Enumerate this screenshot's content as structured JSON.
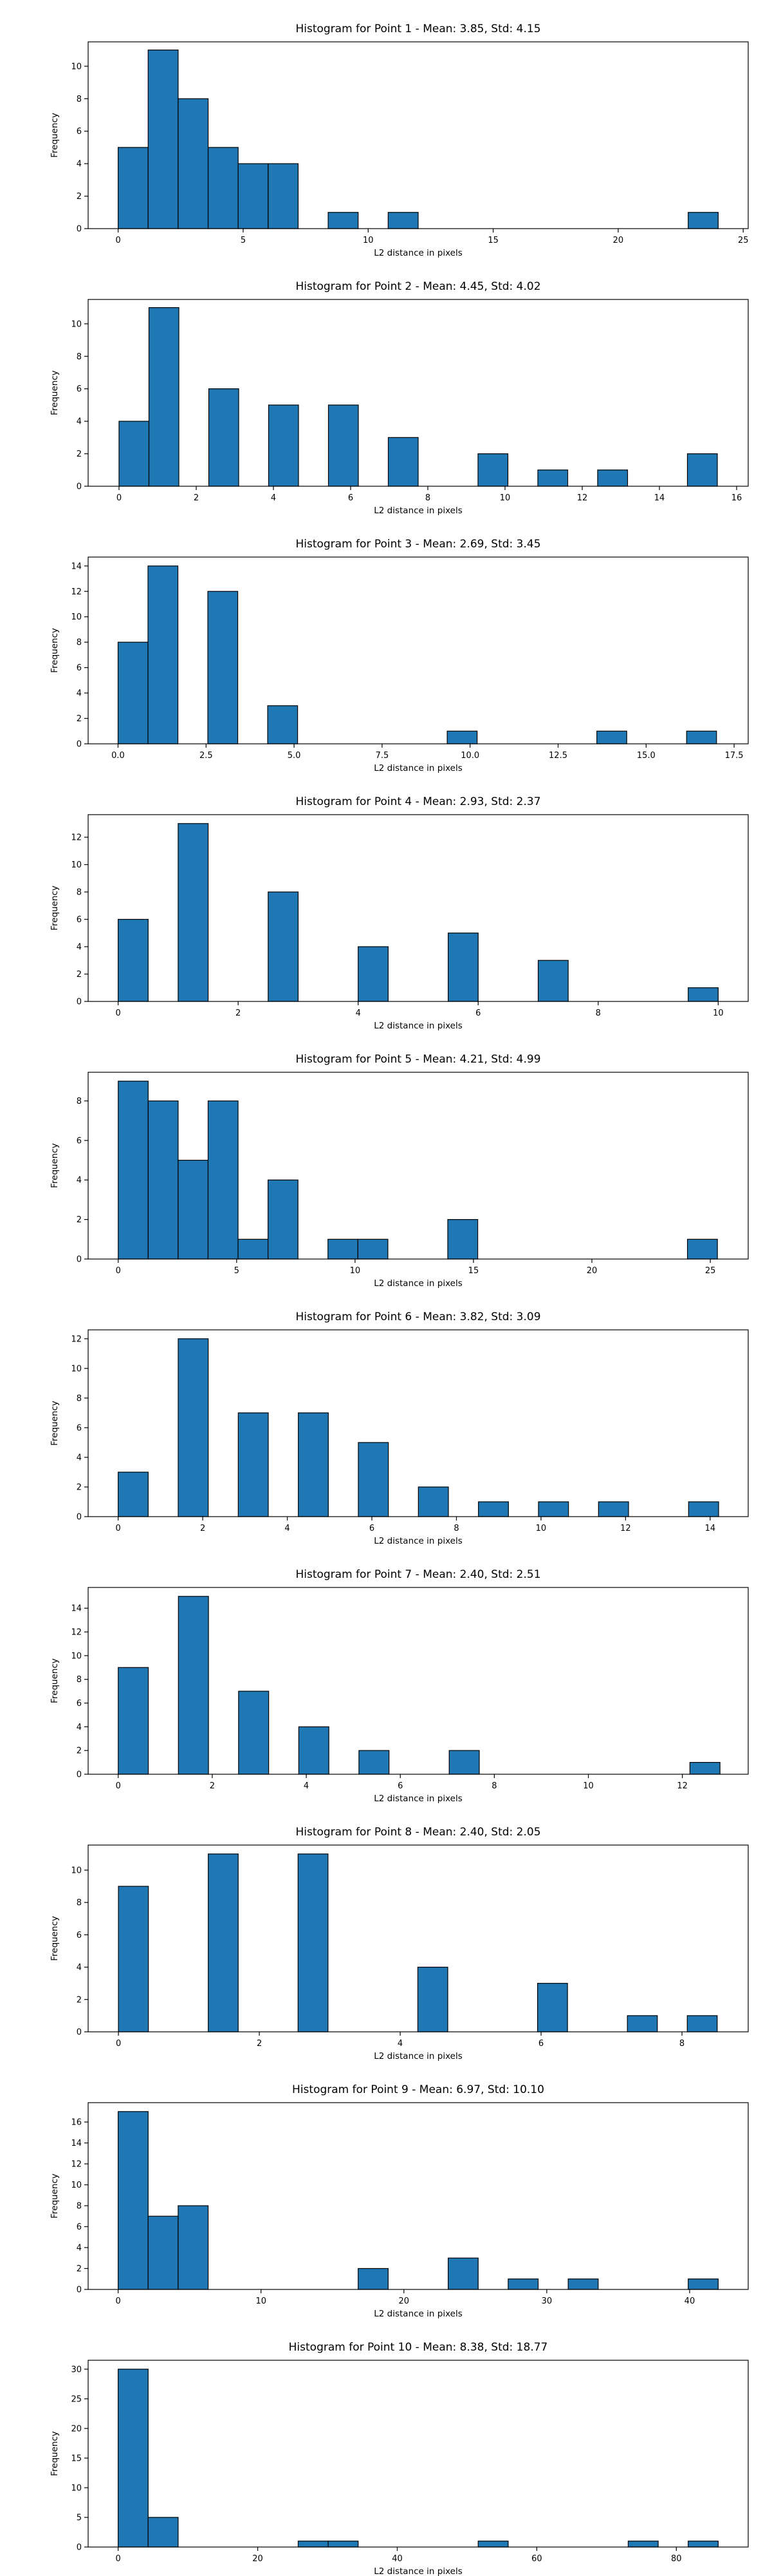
{
  "colors": {
    "bar_fill": "#1f77b4",
    "bar_edge": "#000000",
    "axes": "#000000"
  },
  "chart_data": [
    {
      "type": "bar",
      "title": "Histogram for Point 1 - Mean: 3.85, Std: 4.15",
      "xlabel": "L2 distance in pixels",
      "ylabel": "Frequency",
      "xlim": [
        -1.2,
        25.2
      ],
      "ylim": [
        0,
        11.5
      ],
      "xticks": [
        0,
        5,
        10,
        15,
        20,
        25
      ],
      "xtick_labels": [
        "0",
        "5",
        "10",
        "15",
        "20",
        "25"
      ],
      "yticks": [
        0,
        2,
        4,
        6,
        8,
        10
      ],
      "ytick_labels": [
        "0",
        "2",
        "4",
        "6",
        "8",
        "10"
      ],
      "bin_edges": [
        0,
        1.2,
        2.4,
        3.6,
        4.8,
        6.0,
        7.2,
        8.4,
        9.6,
        10.8,
        12.0,
        13.2,
        14.4,
        15.6,
        16.8,
        18.0,
        19.2,
        20.4,
        21.6,
        22.8,
        24.0
      ],
      "values": [
        5,
        11,
        8,
        5,
        4,
        4,
        0,
        1,
        0,
        1,
        0,
        0,
        0,
        0,
        0,
        0,
        0,
        0,
        0,
        1
      ]
    },
    {
      "type": "bar",
      "title": "Histogram for Point 2 - Mean: 4.45, Std: 4.02",
      "xlabel": "L2 distance in pixels",
      "ylabel": "Frequency",
      "xlim": [
        -0.8,
        16.3
      ],
      "ylim": [
        0,
        11.5
      ],
      "xticks": [
        0,
        2,
        4,
        6,
        8,
        10,
        12,
        14,
        16
      ],
      "xtick_labels": [
        "0",
        "2",
        "4",
        "6",
        "8",
        "10",
        "12",
        "14",
        "16"
      ],
      "yticks": [
        0,
        2,
        4,
        6,
        8,
        10
      ],
      "ytick_labels": [
        "0",
        "2",
        "4",
        "6",
        "8",
        "10"
      ],
      "bin_edges": [
        0,
        0.775,
        1.55,
        2.325,
        3.1,
        3.875,
        4.65,
        5.425,
        6.2,
        6.975,
        7.75,
        8.525,
        9.3,
        10.075,
        10.85,
        11.625,
        12.4,
        13.175,
        13.95,
        14.725,
        15.5
      ],
      "values": [
        4,
        11,
        0,
        6,
        0,
        5,
        0,
        5,
        0,
        3,
        0,
        0,
        2,
        0,
        1,
        0,
        1,
        0,
        0,
        2
      ]
    },
    {
      "type": "bar",
      "title": "Histogram for Point 3 - Mean: 2.69, Std: 3.45",
      "xlabel": "L2 distance in pixels",
      "ylabel": "Frequency",
      "xlim": [
        -0.85,
        17.9
      ],
      "ylim": [
        0,
        14.7
      ],
      "xticks": [
        0,
        2.5,
        5,
        7.5,
        10,
        12.5,
        15,
        17.5
      ],
      "xtick_labels": [
        "0.0",
        "2.5",
        "5.0",
        "7.5",
        "10.0",
        "12.5",
        "15.0",
        "17.5"
      ],
      "yticks": [
        0,
        2,
        4,
        6,
        8,
        10,
        12,
        14
      ],
      "ytick_labels": [
        "0",
        "2",
        "4",
        "6",
        "8",
        "10",
        "12",
        "14"
      ],
      "bin_edges": [
        0,
        0.85,
        1.7,
        2.55,
        3.4,
        4.25,
        5.1,
        5.95,
        6.8,
        7.65,
        8.5,
        9.35,
        10.2,
        11.05,
        11.9,
        12.75,
        13.6,
        14.45,
        15.3,
        16.15,
        17.0
      ],
      "values": [
        8,
        14,
        0,
        12,
        0,
        3,
        0,
        0,
        0,
        0,
        0,
        1,
        0,
        0,
        0,
        0,
        1,
        0,
        0,
        1
      ]
    },
    {
      "type": "bar",
      "title": "Histogram for Point 4 - Mean: 2.93, Std: 2.37",
      "xlabel": "L2 distance in pixels",
      "ylabel": "Frequency",
      "xlim": [
        -0.5,
        10.5
      ],
      "ylim": [
        0,
        13.65
      ],
      "xticks": [
        0,
        2,
        4,
        6,
        8,
        10
      ],
      "xtick_labels": [
        "0",
        "2",
        "4",
        "6",
        "8",
        "10"
      ],
      "yticks": [
        0,
        2,
        4,
        6,
        8,
        10,
        12
      ],
      "ytick_labels": [
        "0",
        "2",
        "4",
        "6",
        "8",
        "10",
        "12"
      ],
      "bin_edges": [
        0,
        0.5,
        1.0,
        1.5,
        2.0,
        2.5,
        3.0,
        3.5,
        4.0,
        4.5,
        5.0,
        5.5,
        6.0,
        6.5,
        7.0,
        7.5,
        8.0,
        8.5,
        9.0,
        9.5,
        10.0
      ],
      "values": [
        6,
        0,
        13,
        0,
        0,
        8,
        0,
        0,
        4,
        0,
        0,
        5,
        0,
        0,
        3,
        0,
        0,
        0,
        0,
        1
      ]
    },
    {
      "type": "bar",
      "title": "Histogram for Point 5 - Mean: 4.21, Std: 4.99",
      "xlabel": "L2 distance in pixels",
      "ylabel": "Frequency",
      "xlim": [
        -1.27,
        26.6
      ],
      "ylim": [
        0,
        9.45
      ],
      "xticks": [
        0,
        5,
        10,
        15,
        20,
        25
      ],
      "xtick_labels": [
        "0",
        "5",
        "10",
        "15",
        "20",
        "25"
      ],
      "yticks": [
        0,
        2,
        4,
        6,
        8
      ],
      "ytick_labels": [
        "0",
        "2",
        "4",
        "6",
        "8"
      ],
      "bin_edges": [
        0,
        1.265,
        2.53,
        3.795,
        5.06,
        6.325,
        7.59,
        8.855,
        10.12,
        11.385,
        12.65,
        13.915,
        15.18,
        16.445,
        17.71,
        18.975,
        20.24,
        21.505,
        22.77,
        24.035,
        25.3
      ],
      "values": [
        9,
        8,
        5,
        8,
        1,
        4,
        0,
        1,
        1,
        0,
        0,
        2,
        0,
        0,
        0,
        0,
        0,
        0,
        0,
        1
      ]
    },
    {
      "type": "bar",
      "title": "Histogram for Point 6 - Mean: 3.82, Std: 3.09",
      "xlabel": "L2 distance in pixels",
      "ylabel": "Frequency",
      "xlim": [
        -0.71,
        14.9
      ],
      "ylim": [
        0,
        12.6
      ],
      "xticks": [
        0,
        2,
        4,
        6,
        8,
        10,
        12,
        14
      ],
      "xtick_labels": [
        "0",
        "2",
        "4",
        "6",
        "8",
        "10",
        "12",
        "14"
      ],
      "yticks": [
        0,
        2,
        4,
        6,
        8,
        10,
        12
      ],
      "ytick_labels": [
        "0",
        "2",
        "4",
        "6",
        "8",
        "10",
        "12"
      ],
      "bin_edges": [
        0,
        0.71,
        1.42,
        2.13,
        2.84,
        3.55,
        4.26,
        4.97,
        5.68,
        6.39,
        7.1,
        7.81,
        8.52,
        9.23,
        9.94,
        10.65,
        11.36,
        12.07,
        12.78,
        13.49,
        14.2
      ],
      "values": [
        3,
        0,
        12,
        0,
        7,
        0,
        7,
        0,
        5,
        0,
        2,
        0,
        1,
        0,
        1,
        0,
        1,
        0,
        0,
        1
      ]
    },
    {
      "type": "bar",
      "title": "Histogram for Point 7 - Mean: 2.40, Std: 2.51",
      "xlabel": "L2 distance in pixels",
      "ylabel": "Frequency",
      "xlim": [
        -0.64,
        13.4
      ],
      "ylim": [
        0,
        15.75
      ],
      "xticks": [
        0,
        2,
        4,
        6,
        8,
        10,
        12
      ],
      "xtick_labels": [
        "0",
        "2",
        "4",
        "6",
        "8",
        "10",
        "12"
      ],
      "yticks": [
        0,
        2,
        4,
        6,
        8,
        10,
        12,
        14
      ],
      "ytick_labels": [
        "0",
        "2",
        "4",
        "6",
        "8",
        "10",
        "12",
        "14"
      ],
      "bin_edges": [
        0,
        0.64,
        1.28,
        1.92,
        2.56,
        3.2,
        3.84,
        4.48,
        5.12,
        5.76,
        6.4,
        7.04,
        7.68,
        8.32,
        8.96,
        9.6,
        10.24,
        10.88,
        11.52,
        12.16,
        12.8
      ],
      "values": [
        9,
        0,
        15,
        0,
        7,
        0,
        4,
        0,
        2,
        0,
        0,
        2,
        0,
        0,
        0,
        0,
        0,
        0,
        0,
        1
      ]
    },
    {
      "type": "bar",
      "title": "Histogram for Point 8 - Mean: 2.40, Std: 2.05",
      "xlabel": "L2 distance in pixels",
      "ylabel": "Frequency",
      "xlim": [
        -0.43,
        8.94
      ],
      "ylim": [
        0,
        11.55
      ],
      "xticks": [
        0,
        2,
        4,
        6,
        8
      ],
      "xtick_labels": [
        "0",
        "2",
        "4",
        "6",
        "8"
      ],
      "yticks": [
        0,
        2,
        4,
        6,
        8,
        10
      ],
      "ytick_labels": [
        "0",
        "2",
        "4",
        "6",
        "8",
        "10"
      ],
      "bin_edges": [
        0,
        0.425,
        0.85,
        1.275,
        1.7,
        2.125,
        2.55,
        2.975,
        3.4,
        3.825,
        4.25,
        4.675,
        5.1,
        5.525,
        5.95,
        6.375,
        6.8,
        7.225,
        7.65,
        8.075,
        8.5
      ],
      "values": [
        9,
        0,
        0,
        11,
        0,
        0,
        11,
        0,
        0,
        0,
        4,
        0,
        0,
        0,
        3,
        0,
        0,
        1,
        0,
        1
      ]
    },
    {
      "type": "bar",
      "title": "Histogram for Point 9 - Mean: 6.97, Std: 10.10",
      "xlabel": "L2 distance in pixels",
      "ylabel": "Frequency",
      "xlim": [
        -2.1,
        44.1
      ],
      "ylim": [
        0,
        17.85
      ],
      "xticks": [
        0,
        10,
        20,
        30,
        40
      ],
      "xtick_labels": [
        "0",
        "10",
        "20",
        "30",
        "40"
      ],
      "yticks": [
        0,
        2,
        4,
        6,
        8,
        10,
        12,
        14,
        16
      ],
      "ytick_labels": [
        "0",
        "2",
        "4",
        "6",
        "8",
        "10",
        "12",
        "14",
        "16"
      ],
      "bin_edges": [
        0,
        2.1,
        4.2,
        6.3,
        8.4,
        10.5,
        12.6,
        14.7,
        16.8,
        18.9,
        21.0,
        23.1,
        25.2,
        27.3,
        29.4,
        31.5,
        33.6,
        35.7,
        37.8,
        39.9,
        42.0
      ],
      "values": [
        17,
        7,
        8,
        0,
        0,
        0,
        0,
        0,
        2,
        0,
        0,
        3,
        0,
        1,
        0,
        1,
        0,
        0,
        0,
        1
      ]
    },
    {
      "type": "bar",
      "title": "Histogram for Point 10 - Mean: 8.38, Std: 18.77",
      "xlabel": "L2 distance in pixels",
      "ylabel": "Frequency",
      "xlim": [
        -4.3,
        90.3
      ],
      "ylim": [
        0,
        31.5
      ],
      "xticks": [
        0,
        20,
        40,
        60,
        80
      ],
      "xtick_labels": [
        "0",
        "20",
        "40",
        "60",
        "80"
      ],
      "yticks": [
        0,
        5,
        10,
        15,
        20,
        25,
        30
      ],
      "ytick_labels": [
        "0",
        "5",
        "10",
        "15",
        "20",
        "25",
        "30"
      ],
      "bin_edges": [
        0,
        4.3,
        8.6,
        12.9,
        17.2,
        21.5,
        25.8,
        30.1,
        34.4,
        38.7,
        43.0,
        47.3,
        51.6,
        55.9,
        60.2,
        64.5,
        68.8,
        73.1,
        77.4,
        81.7,
        86.0
      ],
      "values": [
        30,
        5,
        0,
        0,
        0,
        0,
        1,
        1,
        0,
        0,
        0,
        0,
        1,
        0,
        0,
        0,
        0,
        1,
        0,
        1
      ]
    }
  ]
}
